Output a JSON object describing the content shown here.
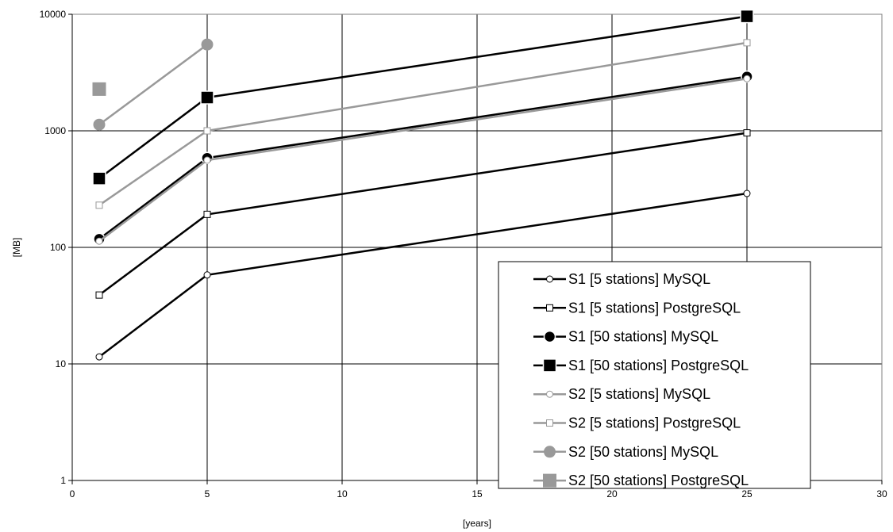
{
  "chart_data": {
    "type": "line",
    "title": "",
    "xlabel": "[years]",
    "ylabel": "[MB]",
    "xlim": [
      0,
      30
    ],
    "ylim": [
      1,
      10000
    ],
    "yscale": "log",
    "x_ticks": [
      "0",
      "5",
      "10",
      "15",
      "20",
      "25",
      "30"
    ],
    "y_ticks": [
      "1",
      "10",
      "100",
      "1000",
      "10000"
    ],
    "grid": true,
    "legend_position": "bottom-right",
    "series": [
      {
        "name": "S1 [5 stations] MySQL",
        "color": "#000000",
        "marker": "circle-open",
        "marker_size": "small",
        "points": [
          {
            "x": 1,
            "y": 11.5
          },
          {
            "x": 5,
            "y": 58
          },
          {
            "x": 25,
            "y": 290
          }
        ]
      },
      {
        "name": "S1 [5 stations] PostgreSQL",
        "color": "#000000",
        "marker": "square-open",
        "marker_size": "small",
        "points": [
          {
            "x": 1,
            "y": 39
          },
          {
            "x": 5,
            "y": 192
          },
          {
            "x": 25,
            "y": 960
          }
        ]
      },
      {
        "name": "S1 [50 stations] MySQL",
        "color": "#000000",
        "marker": "circle-filled",
        "marker_size": "large",
        "points": [
          {
            "x": 1,
            "y": 118
          },
          {
            "x": 5,
            "y": 585
          },
          {
            "x": 25,
            "y": 2920
          }
        ]
      },
      {
        "name": "S1 [50 stations] PostgreSQL",
        "color": "#000000",
        "marker": "square-filled",
        "marker_size": "large",
        "points": [
          {
            "x": 1,
            "y": 390
          },
          {
            "x": 5,
            "y": 1930
          },
          {
            "x": 25,
            "y": 9600
          }
        ]
      },
      {
        "name": "S2 [5 stations] MySQL",
        "color": "#999999",
        "marker": "circle-open",
        "marker_size": "small",
        "points": [
          {
            "x": 1,
            "y": 113
          },
          {
            "x": 5,
            "y": 560
          },
          {
            "x": 25,
            "y": 2800
          }
        ]
      },
      {
        "name": "S2 [5 stations] PostgreSQL",
        "color": "#999999",
        "marker": "square-open",
        "marker_size": "small",
        "points": [
          {
            "x": 1,
            "y": 230
          },
          {
            "x": 5,
            "y": 1000
          },
          {
            "x": 25,
            "y": 5700
          }
        ]
      },
      {
        "name": "S2 [50 stations] MySQL",
        "color": "#999999",
        "marker": "circle-filled",
        "marker_size": "large",
        "points": [
          {
            "x": 1,
            "y": 1130
          },
          {
            "x": 5,
            "y": 5500
          }
        ]
      },
      {
        "name": "S2 [50 stations] PostgreSQL",
        "color": "#999999",
        "marker": "square-filled",
        "marker_size": "large",
        "points": [
          {
            "x": 1,
            "y": 2280
          }
        ]
      }
    ]
  }
}
